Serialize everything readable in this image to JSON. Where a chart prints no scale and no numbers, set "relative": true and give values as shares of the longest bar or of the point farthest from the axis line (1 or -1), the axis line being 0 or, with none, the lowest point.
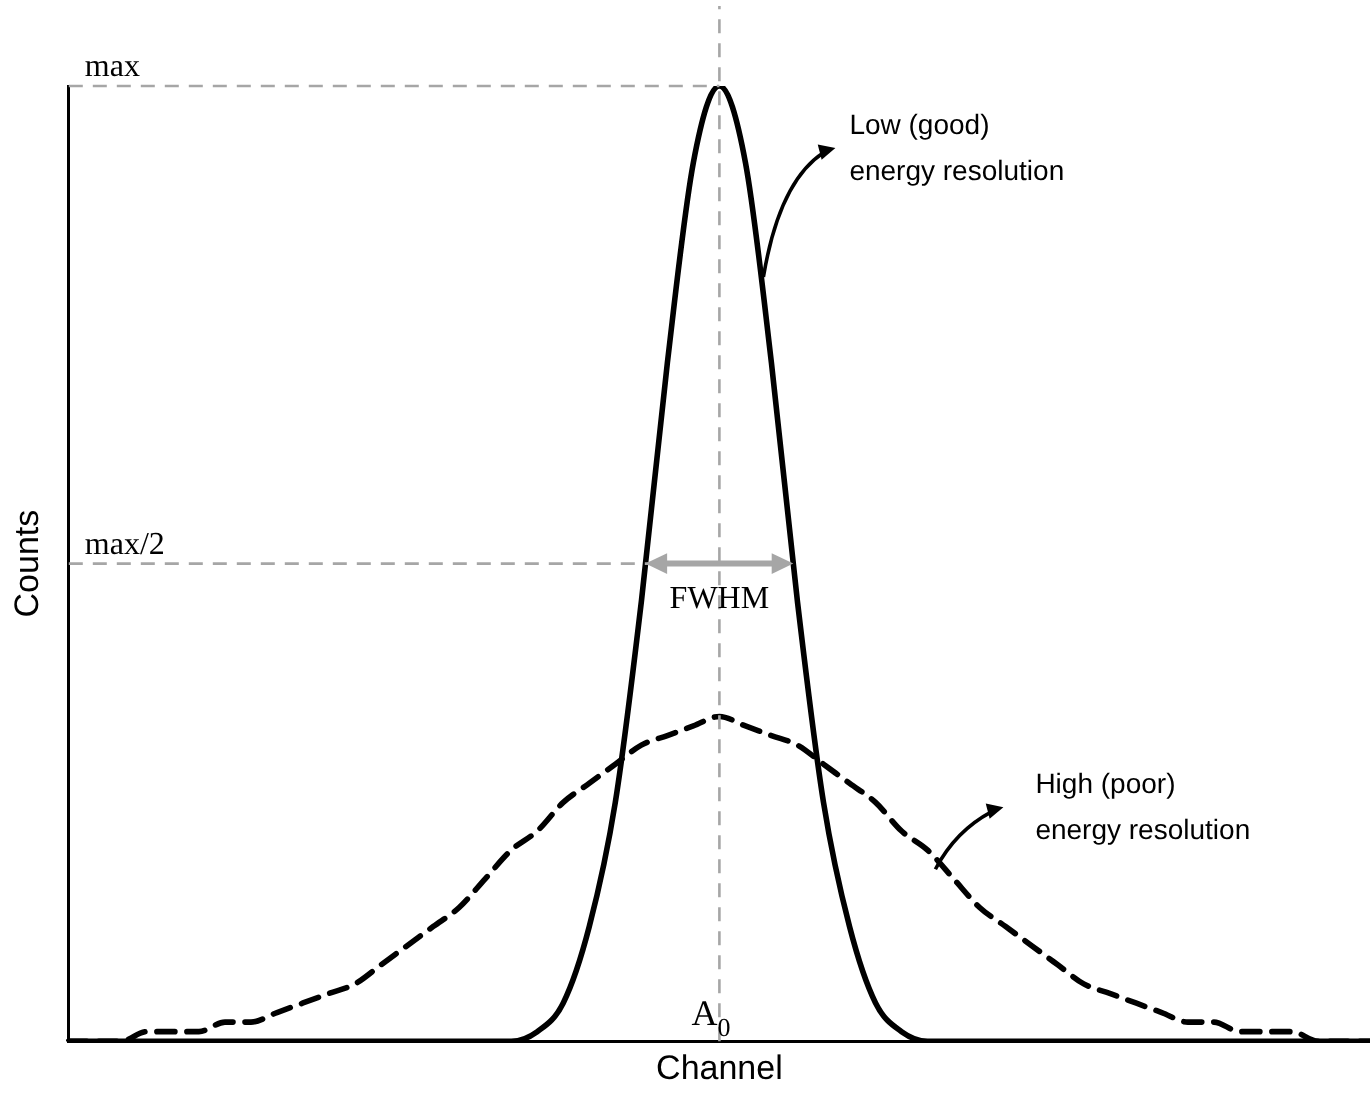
{
  "chart_data": {
    "type": "line",
    "relative": true,
    "xlabel": "Channel",
    "ylabel": "Counts",
    "legend": false,
    "grid": false,
    "marker": "none",
    "categories": [
      null,
      null,
      null,
      null,
      null,
      null,
      null,
      null,
      null,
      null,
      null,
      null,
      null,
      null,
      null,
      null,
      null,
      null,
      null,
      null,
      null,
      null,
      null,
      null,
      null,
      null,
      null,
      null,
      null,
      null,
      null,
      null,
      null,
      null,
      null,
      null,
      null,
      null,
      null,
      null,
      null,
      null,
      null,
      null,
      null,
      null,
      null,
      null,
      null,
      null,
      null
    ],
    "series": [
      {
        "color": "#000000",
        "line_style": "solid",
        "values": [
          0,
          0,
          0,
          0,
          0,
          0,
          0,
          0,
          0,
          0,
          0,
          0,
          0,
          0,
          0,
          0,
          0,
          0,
          0.01,
          0.04,
          0.12,
          0.25,
          0.46,
          0.71,
          0.92,
          1,
          0.92,
          0.71,
          0.46,
          0.25,
          0.12,
          0.04,
          0.01,
          0,
          0,
          0,
          0,
          0,
          0,
          0,
          0,
          0,
          0,
          0,
          0,
          0,
          0,
          0,
          0,
          0,
          0
        ]
      },
      {
        "color": "#000000",
        "line_style": "dashed",
        "values": [
          0,
          0,
          0,
          0.01,
          0.01,
          0.01,
          0.02,
          0.02,
          0.03,
          0.04,
          0.05,
          0.06,
          0.08,
          0.1,
          0.12,
          0.14,
          0.17,
          0.2,
          0.22,
          0.25,
          0.27,
          0.29,
          0.31,
          0.32,
          0.33,
          0.34,
          0.33,
          0.32,
          0.31,
          0.29,
          0.27,
          0.25,
          0.22,
          0.2,
          0.17,
          0.14,
          0.12,
          0.1,
          0.08,
          0.06,
          0.05,
          0.04,
          0.03,
          0.02,
          0.02,
          0.01,
          0.01,
          0.01,
          0,
          0,
          0
        ]
      }
    ],
    "ref_lines": [
      {
        "axis": "y",
        "value": 1,
        "label": "max",
        "color": "#a6a6a6",
        "line_style": "dashed"
      },
      {
        "axis": "y",
        "value": 0.5,
        "label": "max/2",
        "color": "#a6a6a6",
        "line_style": "dashed"
      },
      {
        "axis": "x",
        "label": "A$_{0}$",
        "color": "#a6a6a6",
        "line_style": "dashed"
      }
    ],
    "annotations": [
      "FWHM",
      "Low (good)\nenergy resolution",
      "High (poor)\nenergy resolution"
    ]
  }
}
